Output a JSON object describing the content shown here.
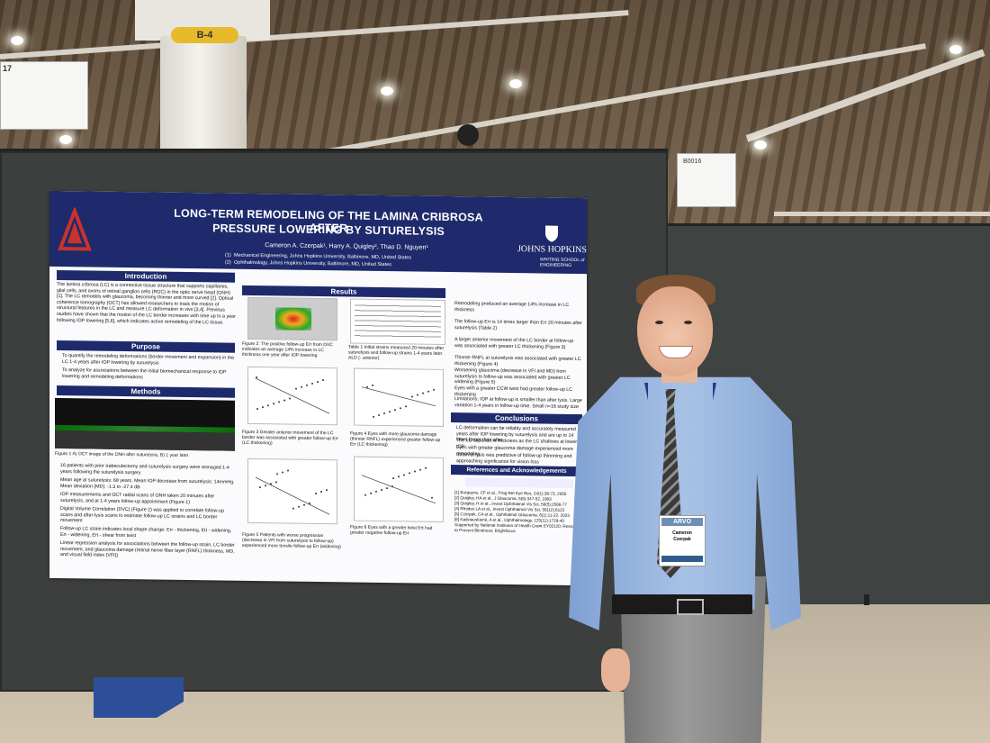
{
  "scene": {
    "pillar_label": "B-4",
    "booth_sign_left_number": "17",
    "booth_sign_right_label": "B0016"
  },
  "poster": {
    "title_line1": "LONG-TERM REMODELING OF THE LAMINA CRIBROSA AFTER",
    "title_line2": "PRESSURE LOWERING BY SUTURELYSIS",
    "authors": "Cameron A. Czerpak¹, Harry A. Quigley², Thao D. Nguyen¹",
    "affiliation1_num": "(1)",
    "affiliation1": "Mechanical Engineering, Johns Hopkins University, Baltimore, MD, United States",
    "affiliation2_num": "(2)",
    "affiliation2": "Ophthalmology, Johns Hopkins University, Baltimore, MD, United States",
    "institution": "JOHNS HOPKINS",
    "institution_sub": "WHITING SCHOOL of ENGINEERING",
    "sections": {
      "introduction": "Introduction",
      "purpose": "Purpose",
      "methods": "Methods",
      "results": "Results",
      "conclusions": "Conclusions",
      "references": "References and Acknowledgements"
    },
    "intro_text": "The lamina cribrosa (LC) is a connective tissue structure that supports capillaries, glial cells, and axons of retinal ganglion cells (RGC) in the optic nerve head (ONH) [1]. The LC remodels with glaucoma, becoming thinner and more curved [2]. Optical coherence tomography (OCT) has allowed researchers to track the motion of structural features in the LC and measure LC deformation in vivo [3,4]. Previous studies have shown that the motion of the LC border increases with time up to a year following IOP lowering [5,6], which indicates active remodeling of the LC tissue.",
    "purpose_items": [
      "To quantify the remodeling deformations (border movement and expansion) in the LC 1-4 years after IOP lowering by suturelysis",
      "To analyze for associations between the initial biomechanical response to IOP lowering and remodeling deformations"
    ],
    "fig1_caption": "Figure 1 A) OCT image of the ONH after suturelysis, B) 1 year later",
    "methods_items": [
      "16 patients with prior trabeculectomy and suturelysis surgery were reimaged 1-4 years following the suturelysis surgery",
      "Mean age at suturelysis: 68 years. Mean IOP decrease from suturelysis: 14mmHg. Mean deviation (MD): -1.3 to -27.4 dB",
      "IOP measurements and OCT radial scans of ONH taken 20 minutes after suturelysis, and at 1-4 years follow-up appointment (Figure 1)",
      "Digital Volume Correlation (DVC) (Figure 2) was applied to correlate follow-up scans and after-lysis scans to estimate follow-up LC strains and LC border movement",
      "Follow-up LC strain indicates local shape change: Err - thickening, Ett - widening, Ert - widening, Ert - shear from twist",
      "Linear regression analysis for associations between the follow-up strain, LC border movement, and glaucoma damage (retinal nerve fiber layer (RNFL) thickness, MD, and visual field index (VFI))"
    ],
    "fig2_caption": "Figure 2: The positive follow-up Err from DVC indicates an average 14% increase in LC thickness one year after IOP-lowering",
    "table1_caption": "Table 1 Initial strains measured 20 minutes after suturelysis and follow-up strains 1-4 years later. ALD (- anterior)",
    "fig3_caption": "Figure 3 Greater anterior movement of the LC border was associated with greater follow-up Err (LC thickening)",
    "fig4_caption": "Figure 4 Eyes with more glaucoma damage (thinner RNFL) experienced greater follow-up Err (LC thickening)",
    "fig5_caption": "Figure 5 Patients with worse progression (decrease in VFI from suturelysis to follow-up) experienced more tensile follow-up Err (widening)",
    "fig6_caption": "Figure 6 Eyes with a greater twist Ert had greater negative follow-up Err",
    "results_items": [
      "Remodeling produced an average 14% increase in LC thickness",
      "The follow-up Err is 14 times larger than Err 20 minutes after suturelysis (Table 2)",
      "A larger anterior movement of the LC border at follow-up was associated with greater LC thickening (Figure 3)",
      "Thinner RNFL at suturelysis was associated with greater LC thickening (Figure 4)",
      "Worsening glaucoma (decrease in VFI and MD) from suturelysis to follow-up was associated with greater LC widening (Figure 5)",
      "Eyes with a greater CCW twist had greater follow-up LC thickening",
      "Limitations: IOP at follow-up is smaller than after lysis. Large variation 1-4 years in follow-up time. Small n=16 study size"
    ],
    "conclusion_items": [
      "LC deformation can be reliably and accurately measured years after IOP lowering by suturelysis and are up to 14 times larger than after",
      "The LC expands in thickness as the LC shallows at lower IOP",
      "Eyes with greater glaucoma damage experienced more remodeling",
      "Strain at lysis was predictive of follow-up thinnning and approaching significance for vision loss"
    ],
    "references": [
      "[1] Burgoyne, CF et al., Prog Ret Eye Res, 24(1):39-73, 2005",
      "[2] Quigley, HA et al., J Glaucoma, 5(6):347-52, 1993",
      "[3] Quigley, H et al., Invest Ophthalmol Vis Sci, 56(5):2566-77",
      "[4] Rhodes LA et al., Invest Ophthalmol Vis Sci, 56(12):6123",
      "[5] Czerpak, CA et al., Ophthalmol Glaucoma, 6(1):11-22, 2023",
      "[6] Kadziauskiené, A et al., Ophthalmology, 125(11):1729-40",
      "Supported by National Institutes of Health Grant EY02120; Research to Prevent Blindness; Brightfocus"
    ]
  },
  "badge": {
    "event": "ARVO",
    "first_name": "Cameron",
    "last_name": "Czerpak"
  },
  "colors": {
    "poster_header": "#1e2a6b",
    "board": "#3c3f3d",
    "shirt": "#a8c2e6",
    "lanyard": "#243a8c"
  }
}
